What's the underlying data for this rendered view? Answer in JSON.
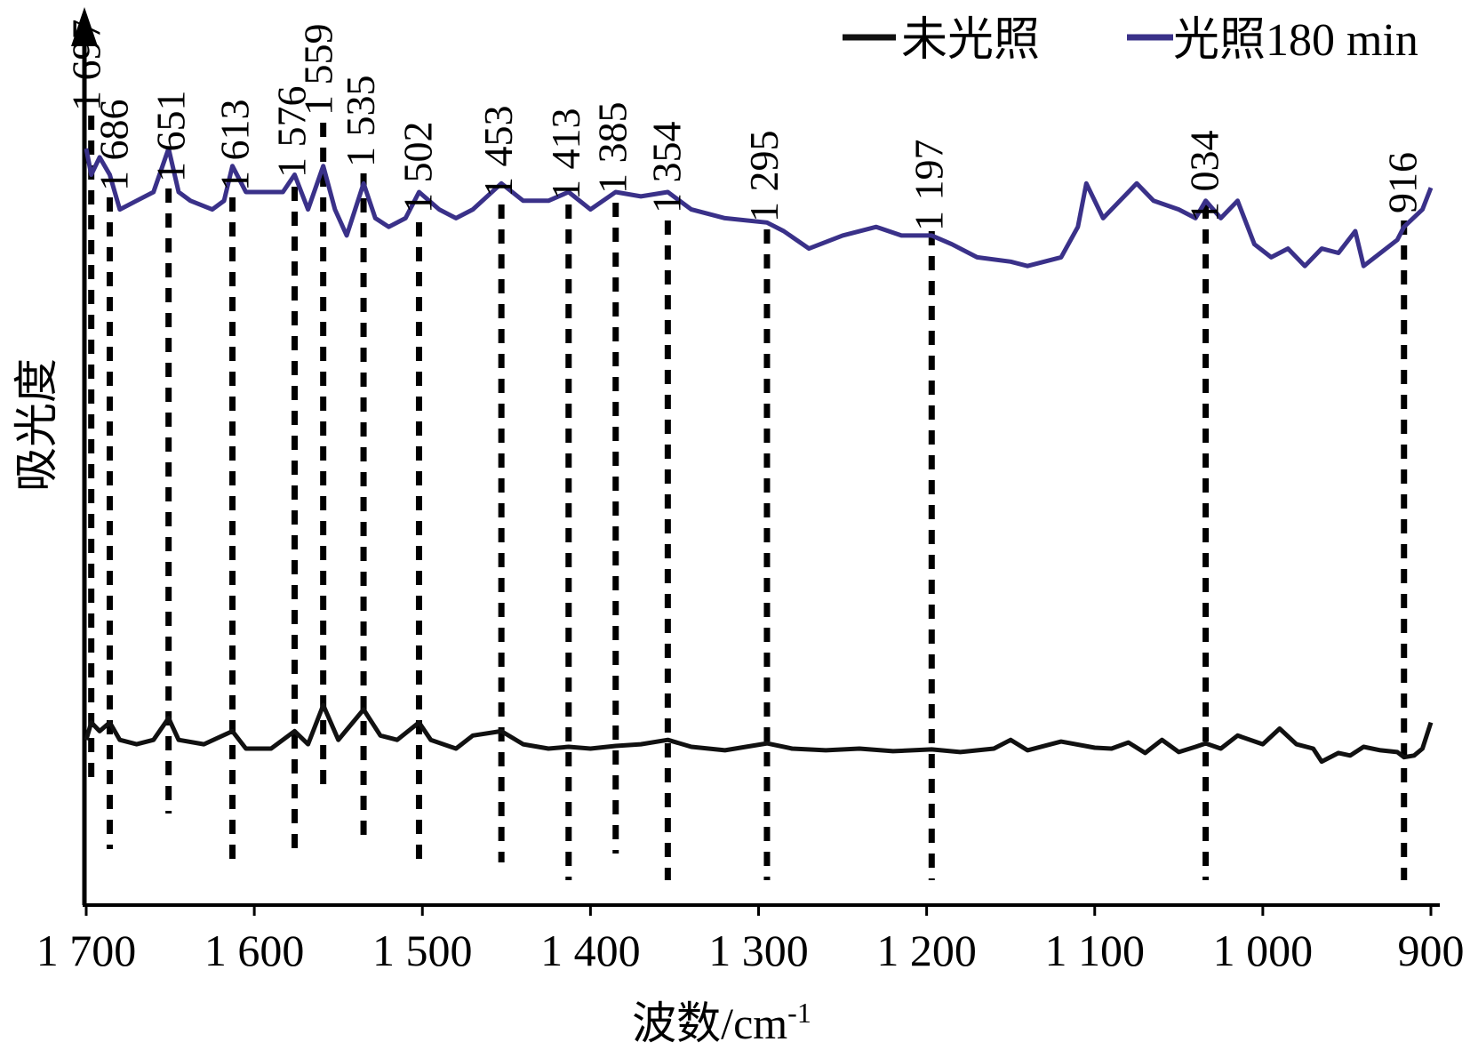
{
  "chart_data": {
    "type": "line",
    "title": "",
    "xlabel": "波数/cm",
    "xlabel_sup": "-1",
    "ylabel": "吸光度",
    "xlim": [
      1700,
      900
    ],
    "x_reversed": true,
    "y_ticks_shown": false,
    "grid": false,
    "legend_position": "top-right",
    "x_ticks": [
      1700,
      1600,
      1500,
      1400,
      1300,
      1200,
      1100,
      1000,
      900
    ],
    "x_tick_labels": [
      "1 700",
      "1 600",
      "1 500",
      "1 400",
      "1 300",
      "1 200",
      "1 100",
      "1 000",
      "900"
    ],
    "peaks": [
      {
        "x": 1697,
        "label": "1 697"
      },
      {
        "x": 1686,
        "label": "1 686"
      },
      {
        "x": 1651,
        "label": "1 651"
      },
      {
        "x": 1613,
        "label": "1 613"
      },
      {
        "x": 1576,
        "label": "1 576"
      },
      {
        "x": 1559,
        "label": "1 559"
      },
      {
        "x": 1535,
        "label": "1 535"
      },
      {
        "x": 1502,
        "label": "1 502"
      },
      {
        "x": 1453,
        "label": "1 453"
      },
      {
        "x": 1413,
        "label": "1 413"
      },
      {
        "x": 1385,
        "label": "1 385"
      },
      {
        "x": 1354,
        "label": "1 354"
      },
      {
        "x": 1295,
        "label": "1 295"
      },
      {
        "x": 1197,
        "label": "1 197"
      },
      {
        "x": 1034,
        "label": "1 034"
      },
      {
        "x": 916,
        "label": "916"
      }
    ],
    "series": [
      {
        "name": "未光照",
        "color": "#111111",
        "points": [
          [
            1700,
            0.19
          ],
          [
            1697,
            0.21
          ],
          [
            1692,
            0.2
          ],
          [
            1686,
            0.21
          ],
          [
            1680,
            0.19
          ],
          [
            1670,
            0.185
          ],
          [
            1660,
            0.19
          ],
          [
            1651,
            0.215
          ],
          [
            1645,
            0.19
          ],
          [
            1630,
            0.185
          ],
          [
            1613,
            0.2
          ],
          [
            1605,
            0.18
          ],
          [
            1590,
            0.18
          ],
          [
            1576,
            0.2
          ],
          [
            1568,
            0.185
          ],
          [
            1559,
            0.23
          ],
          [
            1550,
            0.19
          ],
          [
            1535,
            0.225
          ],
          [
            1525,
            0.195
          ],
          [
            1515,
            0.19
          ],
          [
            1502,
            0.21
          ],
          [
            1495,
            0.19
          ],
          [
            1480,
            0.18
          ],
          [
            1470,
            0.195
          ],
          [
            1453,
            0.2
          ],
          [
            1440,
            0.185
          ],
          [
            1425,
            0.18
          ],
          [
            1413,
            0.182
          ],
          [
            1400,
            0.18
          ],
          [
            1385,
            0.183
          ],
          [
            1370,
            0.185
          ],
          [
            1354,
            0.19
          ],
          [
            1340,
            0.182
          ],
          [
            1320,
            0.178
          ],
          [
            1295,
            0.186
          ],
          [
            1280,
            0.18
          ],
          [
            1260,
            0.178
          ],
          [
            1240,
            0.18
          ],
          [
            1220,
            0.177
          ],
          [
            1197,
            0.179
          ],
          [
            1180,
            0.176
          ],
          [
            1160,
            0.18
          ],
          [
            1150,
            0.19
          ],
          [
            1140,
            0.178
          ],
          [
            1120,
            0.188
          ],
          [
            1100,
            0.181
          ],
          [
            1090,
            0.18
          ],
          [
            1080,
            0.187
          ],
          [
            1070,
            0.175
          ],
          [
            1060,
            0.19
          ],
          [
            1050,
            0.176
          ],
          [
            1040,
            0.182
          ],
          [
            1034,
            0.186
          ],
          [
            1025,
            0.18
          ],
          [
            1015,
            0.195
          ],
          [
            1000,
            0.185
          ],
          [
            990,
            0.203
          ],
          [
            980,
            0.185
          ],
          [
            970,
            0.18
          ],
          [
            965,
            0.165
          ],
          [
            955,
            0.175
          ],
          [
            948,
            0.172
          ],
          [
            940,
            0.182
          ],
          [
            930,
            0.178
          ],
          [
            920,
            0.176
          ],
          [
            916,
            0.17
          ],
          [
            910,
            0.172
          ],
          [
            905,
            0.18
          ],
          [
            900,
            0.21
          ]
        ]
      },
      {
        "name": "光照180 min",
        "color": "#3a3189",
        "points": [
          [
            1700,
            0.87
          ],
          [
            1697,
            0.84
          ],
          [
            1692,
            0.86
          ],
          [
            1686,
            0.84
          ],
          [
            1680,
            0.8
          ],
          [
            1670,
            0.81
          ],
          [
            1660,
            0.82
          ],
          [
            1651,
            0.87
          ],
          [
            1645,
            0.82
          ],
          [
            1638,
            0.81
          ],
          [
            1625,
            0.8
          ],
          [
            1618,
            0.81
          ],
          [
            1613,
            0.85
          ],
          [
            1605,
            0.82
          ],
          [
            1590,
            0.82
          ],
          [
            1583,
            0.82
          ],
          [
            1576,
            0.84
          ],
          [
            1568,
            0.8
          ],
          [
            1559,
            0.85
          ],
          [
            1552,
            0.8
          ],
          [
            1545,
            0.77
          ],
          [
            1535,
            0.83
          ],
          [
            1528,
            0.79
          ],
          [
            1520,
            0.78
          ],
          [
            1510,
            0.79
          ],
          [
            1502,
            0.82
          ],
          [
            1490,
            0.8
          ],
          [
            1480,
            0.79
          ],
          [
            1470,
            0.8
          ],
          [
            1453,
            0.83
          ],
          [
            1440,
            0.81
          ],
          [
            1425,
            0.81
          ],
          [
            1413,
            0.82
          ],
          [
            1400,
            0.8
          ],
          [
            1385,
            0.82
          ],
          [
            1370,
            0.815
          ],
          [
            1354,
            0.82
          ],
          [
            1340,
            0.8
          ],
          [
            1320,
            0.79
          ],
          [
            1295,
            0.785
          ],
          [
            1285,
            0.775
          ],
          [
            1270,
            0.755
          ],
          [
            1250,
            0.77
          ],
          [
            1230,
            0.78
          ],
          [
            1215,
            0.77
          ],
          [
            1197,
            0.77
          ],
          [
            1185,
            0.76
          ],
          [
            1170,
            0.745
          ],
          [
            1150,
            0.74
          ],
          [
            1140,
            0.735
          ],
          [
            1120,
            0.745
          ],
          [
            1110,
            0.78
          ],
          [
            1105,
            0.83
          ],
          [
            1095,
            0.79
          ],
          [
            1085,
            0.81
          ],
          [
            1075,
            0.83
          ],
          [
            1065,
            0.81
          ],
          [
            1050,
            0.8
          ],
          [
            1040,
            0.79
          ],
          [
            1034,
            0.81
          ],
          [
            1025,
            0.79
          ],
          [
            1015,
            0.81
          ],
          [
            1005,
            0.76
          ],
          [
            995,
            0.745
          ],
          [
            985,
            0.755
          ],
          [
            975,
            0.735
          ],
          [
            965,
            0.755
          ],
          [
            955,
            0.75
          ],
          [
            945,
            0.775
          ],
          [
            940,
            0.735
          ],
          [
            930,
            0.75
          ],
          [
            920,
            0.765
          ],
          [
            916,
            0.78
          ],
          [
            905,
            0.8
          ],
          [
            900,
            0.825
          ]
        ]
      }
    ]
  }
}
